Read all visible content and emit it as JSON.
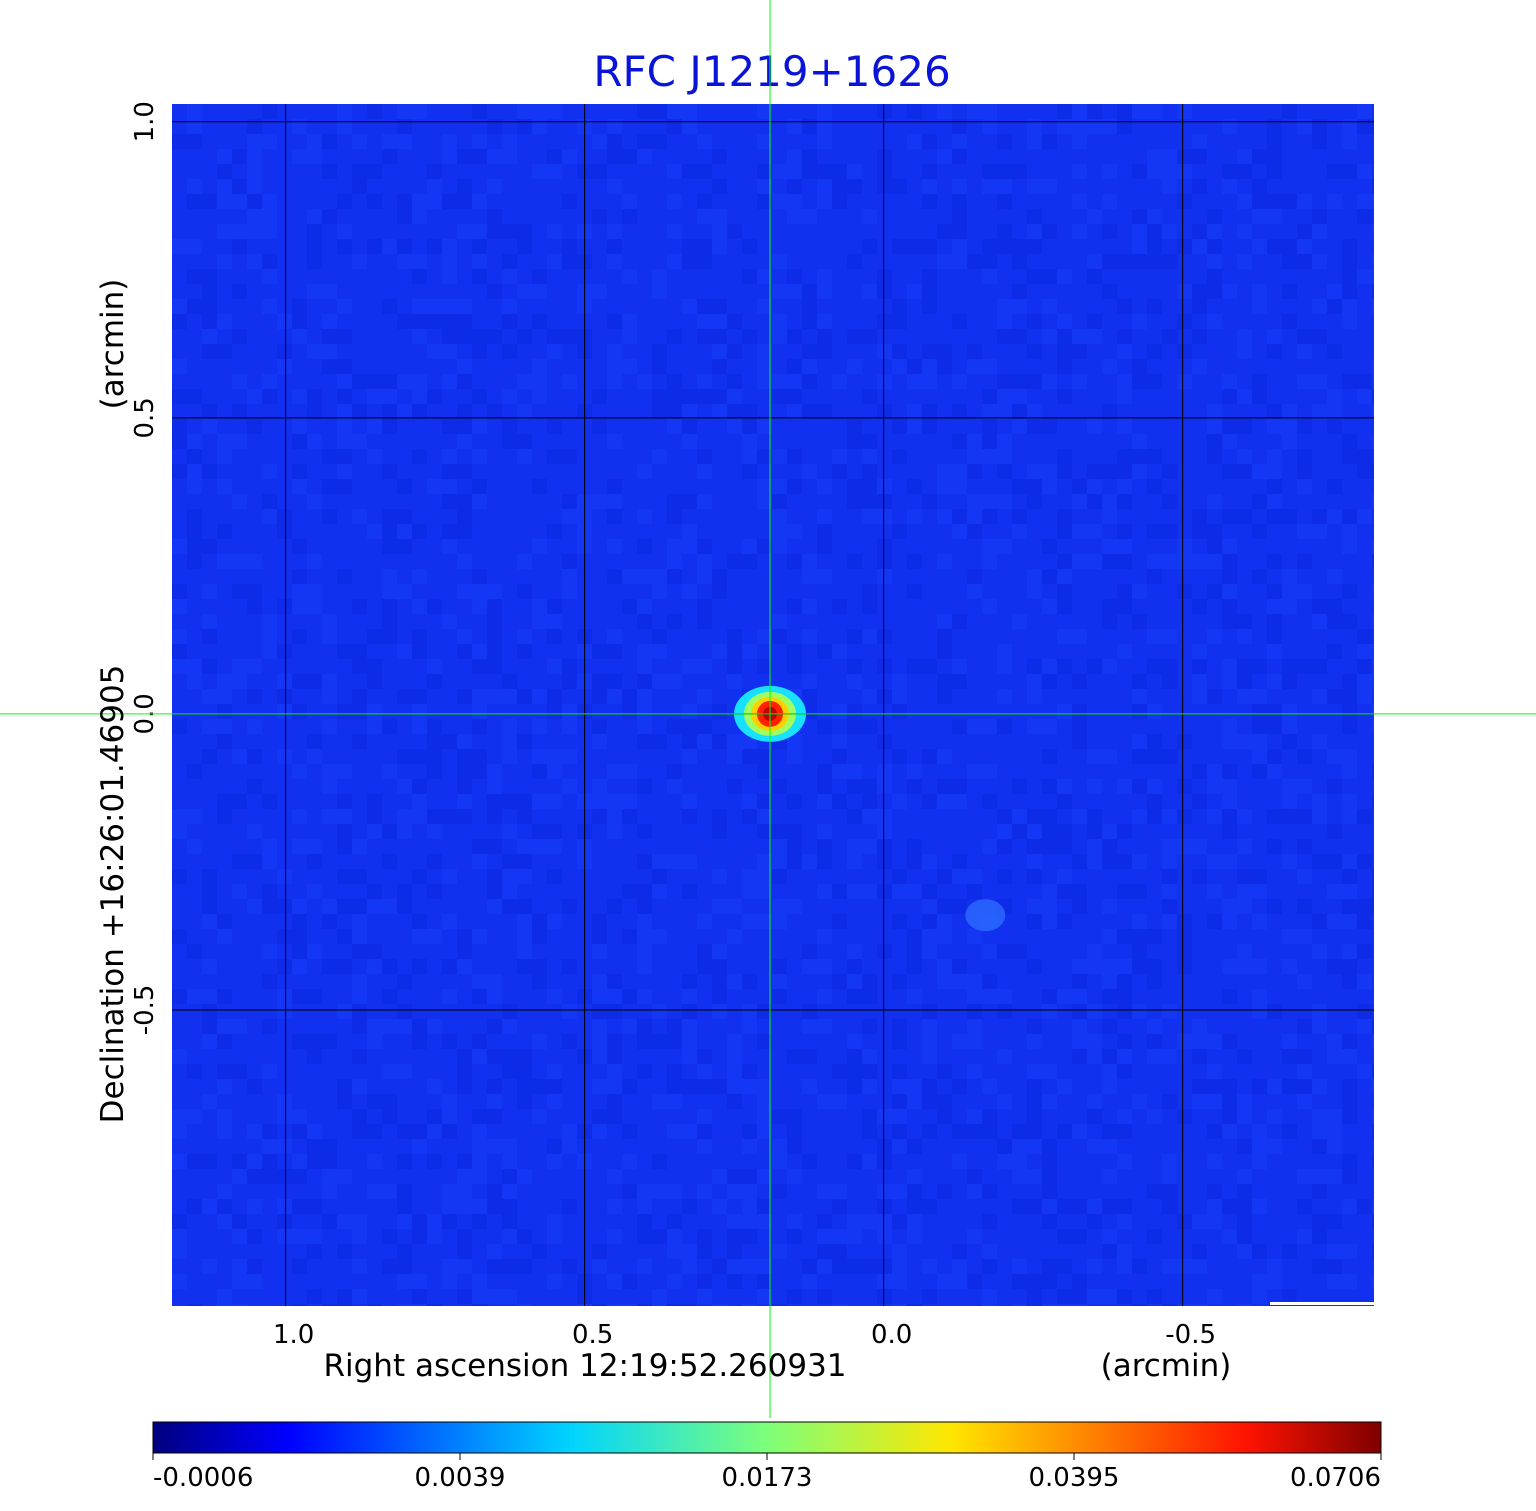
{
  "chart_data": {
    "type": "heatmap",
    "title": "RFC J1219+1626",
    "xlabel": "Right ascension  12:19:52.260931",
    "xunit": "(arcmin)",
    "ylabel": "Declination  +16:26:01.46905",
    "yunit": "(arcmin)",
    "x_ticks": [
      "1.0",
      "0.5",
      "0.0",
      "-0.5"
    ],
    "y_ticks": [
      "1.0",
      "0.5",
      "0.0",
      "-0.5"
    ],
    "xlim": [
      1.19,
      -0.82
    ],
    "ylim": [
      -1.0,
      1.03
    ],
    "grid": true,
    "colormap": "jet",
    "colorbar_ticks": [
      "-0.0006",
      "0.0039",
      "0.0173",
      "0.0395",
      "0.0706"
    ],
    "colorbar_range": [
      -0.0006,
      0.0706
    ],
    "features": [
      {
        "x": 0.19,
        "y": 0.0,
        "value": 0.0706
      },
      {
        "x": -0.17,
        "y": -0.34,
        "value": 0.0039
      }
    ],
    "crosshair": {
      "x": 0.19,
      "y": 0.0
    },
    "colors": {
      "title": "#0a14d8",
      "background": "#1230f0",
      "crosshair": "#00ff00",
      "grid": "#000000"
    }
  }
}
